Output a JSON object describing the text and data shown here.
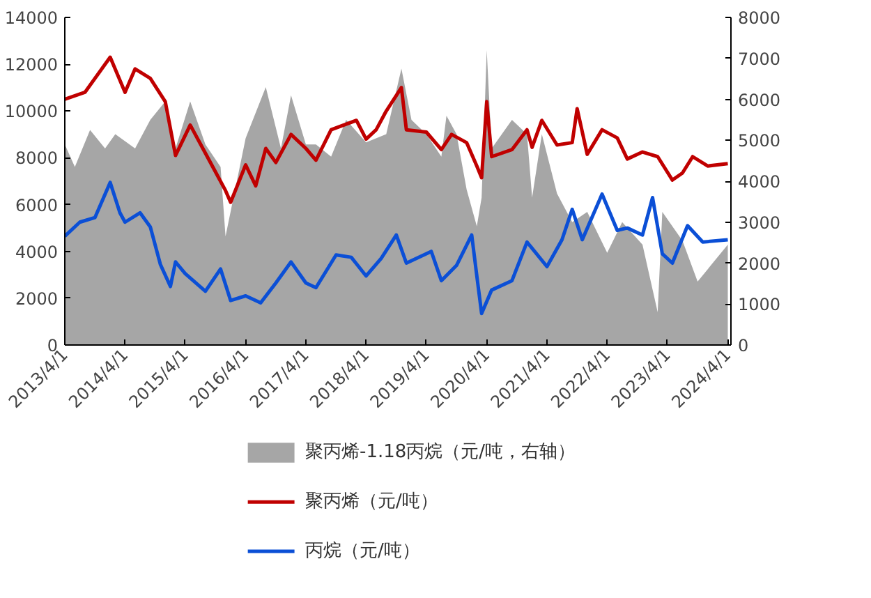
{
  "chart_data": {
    "type": "line",
    "xlim": [
      "2013-04-01",
      "2024-04-20"
    ],
    "xticks": [
      {
        "value": "2013-04-01",
        "label": "2013/4/1"
      },
      {
        "value": "2014-04-01",
        "label": "2014/4/1"
      },
      {
        "value": "2015-04-01",
        "label": "2015/4/1"
      },
      {
        "value": "2016-04-01",
        "label": "2016/4/1"
      },
      {
        "value": "2017-04-01",
        "label": "2017/4/1"
      },
      {
        "value": "2018-04-01",
        "label": "2018/4/1"
      },
      {
        "value": "2019-04-01",
        "label": "2019/4/1"
      },
      {
        "value": "2020-04-01",
        "label": "2020/4/1"
      },
      {
        "value": "2021-04-01",
        "label": "2021/4/1"
      },
      {
        "value": "2022-04-01",
        "label": "2022/4/1"
      },
      {
        "value": "2023-04-01",
        "label": "2023/4/1"
      },
      {
        "value": "2024-04-01",
        "label": "2024/4/1"
      }
    ],
    "ylim": [
      0,
      14000
    ],
    "yticks": [
      0,
      2000,
      4000,
      6000,
      8000,
      10000,
      12000,
      14000
    ],
    "y2lim": [
      0,
      8000
    ],
    "y2ticks": [
      0,
      1000,
      2000,
      3000,
      4000,
      5000,
      6000,
      7000,
      8000
    ],
    "legend": "bottom",
    "grid": false,
    "marker": "none",
    "series": [
      {
        "name": "聚丙烯-1.18丙烷（元/吨，右轴）",
        "type": "area",
        "axis": "y2",
        "color": "#a6a6a6",
        "x": [
          "2013-04",
          "2013-06",
          "2013-09",
          "2013-12",
          "2014-02",
          "2014-06",
          "2014-09",
          "2014-12",
          "2015-02",
          "2015-05",
          "2015-08",
          "2015-11",
          "2015-12",
          "2016-04",
          "2016-08",
          "2016-11",
          "2017-01",
          "2017-04",
          "2017-06",
          "2017-09",
          "2017-12",
          "2018-04",
          "2018-08",
          "2018-11",
          "2019-01",
          "2019-04",
          "2019-07",
          "2019-08",
          "2019-10",
          "2019-12",
          "2020-02",
          "2020-03",
          "2020-04",
          "2020-05",
          "2020-09",
          "2020-12",
          "2021-01",
          "2021-03",
          "2021-06",
          "2021-09",
          "2021-12",
          "2022-04",
          "2022-07",
          "2022-11",
          "2023-02",
          "2023-03",
          "2023-07",
          "2023-10",
          "2024-04"
        ],
        "values": [
          4900,
          4350,
          5250,
          4800,
          5150,
          4800,
          5500,
          5950,
          4800,
          5950,
          4900,
          4350,
          2650,
          5050,
          6300,
          4800,
          6100,
          4900,
          4900,
          4600,
          5500,
          4950,
          5150,
          6750,
          5500,
          5150,
          4600,
          5600,
          5150,
          3800,
          2900,
          3600,
          7200,
          4800,
          5500,
          5150,
          3600,
          5150,
          3700,
          3000,
          3250,
          2250,
          3000,
          2450,
          800,
          3250,
          2550,
          1550,
          2450
        ]
      },
      {
        "name": "聚丙烯（元/吨）",
        "color": "#c00000",
        "x": [
          "2013-04",
          "2013-08",
          "2014-01",
          "2014-04",
          "2014-06",
          "2014-09",
          "2014-12",
          "2015-02",
          "2015-05",
          "2015-08",
          "2015-12",
          "2016-01",
          "2016-04",
          "2016-06",
          "2016-08",
          "2016-10",
          "2017-01",
          "2017-04",
          "2017-06",
          "2017-09",
          "2018-02",
          "2018-04",
          "2018-06",
          "2018-08",
          "2018-11",
          "2018-12",
          "2019-04",
          "2019-07",
          "2019-09",
          "2019-12",
          "2020-02",
          "2020-03",
          "2020-04",
          "2020-05",
          "2020-09",
          "2020-12",
          "2021-01",
          "2021-03",
          "2021-06",
          "2021-09",
          "2021-10",
          "2021-12",
          "2022-03",
          "2022-06",
          "2022-08",
          "2022-11",
          "2023-02",
          "2023-05",
          "2023-07",
          "2023-09",
          "2023-12",
          "2024-04"
        ],
        "values": [
          10500,
          10800,
          12300,
          10800,
          11800,
          11400,
          10400,
          8100,
          9400,
          8200,
          6600,
          6100,
          7700,
          6800,
          8400,
          7800,
          9000,
          8400,
          7900,
          9200,
          9600,
          8800,
          9200,
          10000,
          11000,
          9200,
          9100,
          8350,
          9000,
          8650,
          7650,
          7150,
          10400,
          8050,
          8350,
          9200,
          8450,
          9600,
          8550,
          8650,
          10100,
          8150,
          9200,
          8850,
          7950,
          8250,
          8050,
          7050,
          7350,
          8050,
          7650,
          7750
        ]
      },
      {
        "name": "丙烷（元/吨）",
        "color": "#0b4fd6",
        "x": [
          "2013-04",
          "2013-07",
          "2013-10",
          "2014-01",
          "2014-03",
          "2014-04",
          "2014-07",
          "2014-09",
          "2014-11",
          "2015-01",
          "2015-02",
          "2015-04",
          "2015-08",
          "2015-11",
          "2016-01",
          "2016-04",
          "2016-07",
          "2016-10",
          "2017-01",
          "2017-04",
          "2017-06",
          "2017-10",
          "2018-01",
          "2018-04",
          "2018-07",
          "2018-10",
          "2018-12",
          "2019-05",
          "2019-07",
          "2019-10",
          "2020-01",
          "2020-02",
          "2020-03",
          "2020-05",
          "2020-09",
          "2020-12",
          "2021-04",
          "2021-07",
          "2021-09",
          "2021-11",
          "2022-03",
          "2022-06",
          "2022-08",
          "2022-11",
          "2023-01",
          "2023-03",
          "2023-05",
          "2023-08",
          "2023-11",
          "2024-04"
        ],
        "values": [
          4650,
          5250,
          5450,
          6950,
          5650,
          5250,
          5650,
          5050,
          3450,
          2500,
          3550,
          3050,
          2300,
          3250,
          1900,
          2100,
          1800,
          2650,
          3550,
          2650,
          2450,
          3850,
          3750,
          2950,
          3700,
          4700,
          3500,
          4000,
          2750,
          3400,
          4700,
          2950,
          1350,
          2350,
          2750,
          4400,
          3350,
          4500,
          5800,
          4500,
          6450,
          4900,
          5000,
          4700,
          6300,
          3900,
          3500,
          5100,
          4400,
          4500
        ]
      }
    ]
  }
}
